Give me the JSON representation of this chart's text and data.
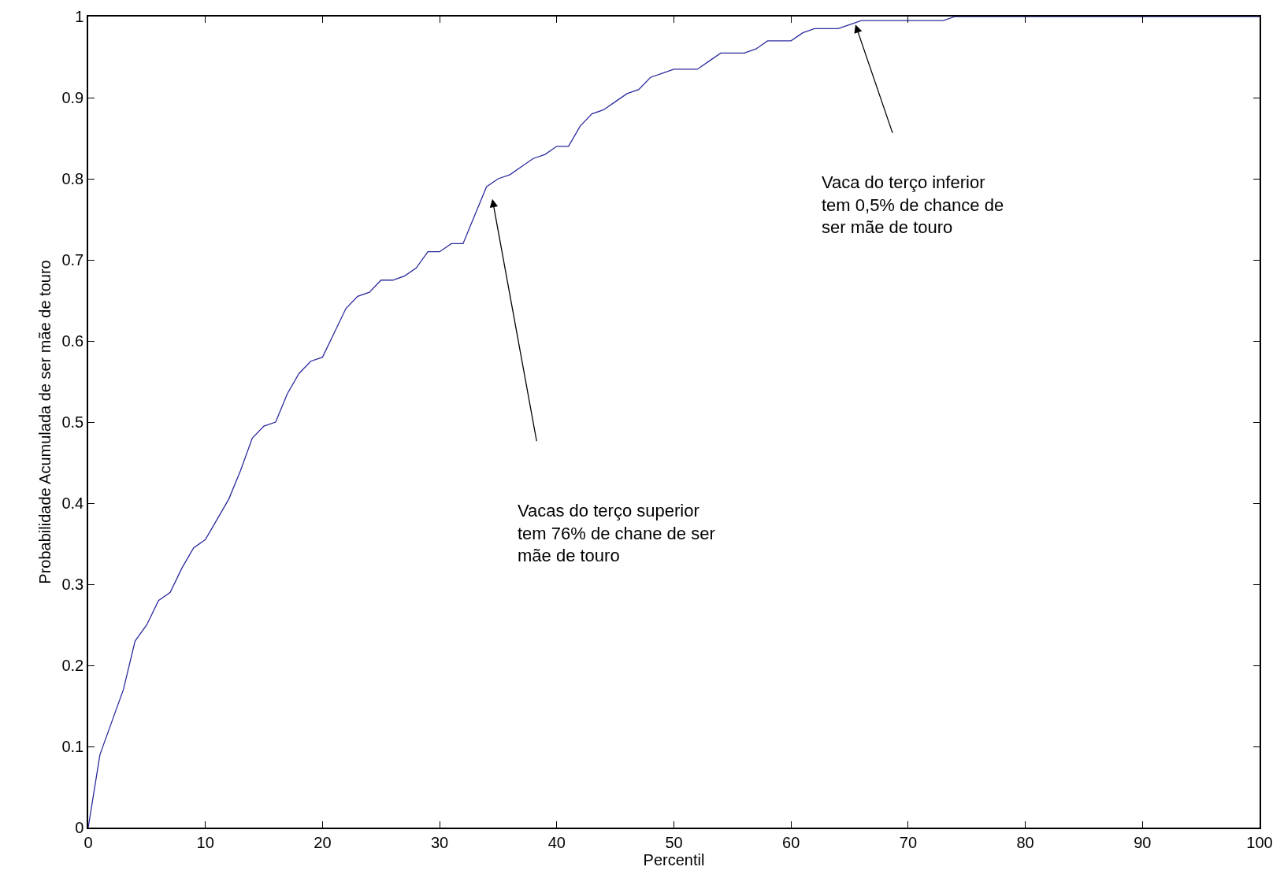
{
  "chart_data": {
    "type": "line",
    "xlabel": "Percentil",
    "ylabel": "Probabilidade Acumulada de ser mãe de touro",
    "x": [
      0,
      1,
      2,
      3,
      4,
      5,
      6,
      7,
      8,
      9,
      10,
      11,
      12,
      13,
      14,
      15,
      16,
      17,
      18,
      19,
      20,
      21,
      22,
      23,
      24,
      25,
      26,
      27,
      28,
      29,
      30,
      31,
      32,
      33,
      34,
      35,
      36,
      37,
      38,
      39,
      40,
      41,
      42,
      43,
      44,
      45,
      46,
      47,
      48,
      49,
      50,
      51,
      52,
      53,
      54,
      55,
      56,
      57,
      58,
      59,
      60,
      61,
      62,
      63,
      64,
      65,
      66,
      67,
      68,
      69,
      70,
      71,
      72,
      73,
      74,
      100
    ],
    "series": [
      {
        "color": "#2b2b9e",
        "values": [
          0,
          0.09,
          0.13,
          0.17,
          0.23,
          0.25,
          0.28,
          0.29,
          0.32,
          0.345,
          0.355,
          0.38,
          0.405,
          0.44,
          0.48,
          0.495,
          0.5,
          0.535,
          0.56,
          0.575,
          0.58,
          0.61,
          0.64,
          0.655,
          0.66,
          0.675,
          0.675,
          0.68,
          0.69,
          0.71,
          0.71,
          0.72,
          0.72,
          0.755,
          0.79,
          0.8,
          0.805,
          0.815,
          0.825,
          0.83,
          0.84,
          0.84,
          0.865,
          0.88,
          0.885,
          0.895,
          0.905,
          0.91,
          0.925,
          0.93,
          0.935,
          0.935,
          0.935,
          0.945,
          0.955,
          0.955,
          0.955,
          0.96,
          0.97,
          0.97,
          0.97,
          0.98,
          0.985,
          0.985,
          0.985,
          0.99,
          0.995,
          0.995,
          0.995,
          0.995,
          0.995,
          0.995,
          0.995,
          0.995,
          1.0,
          1.0
        ]
      }
    ],
    "xlim": [
      0,
      100
    ],
    "xticks": [
      0,
      10,
      20,
      30,
      40,
      50,
      60,
      70,
      80,
      90,
      100
    ],
    "ylim": [
      0,
      1
    ],
    "yticks": [
      0,
      0.1,
      0.2,
      0.3,
      0.4,
      0.5,
      0.6,
      0.7,
      0.8,
      0.9,
      1
    ],
    "marker": "none",
    "line_style": "solid",
    "annotations": [
      "Vacas do terço superior\ntem 76% de chane de ser\nmãe de touro",
      "Vaca do terço inferior\ntem 0,5% de chance de\nser mãe de touro"
    ]
  }
}
